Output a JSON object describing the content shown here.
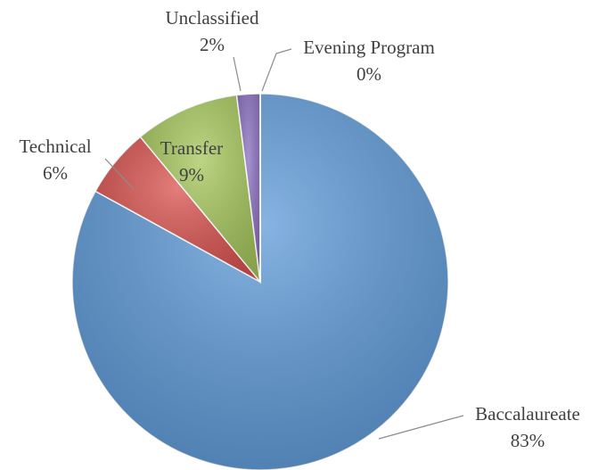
{
  "chart_data": {
    "type": "pie",
    "categories": [
      "Baccalaureate",
      "Technical",
      "Transfer",
      "Unclassified",
      "Evening Program"
    ],
    "values": [
      83,
      6,
      9,
      2,
      0
    ],
    "value_labels": [
      "83%",
      "6%",
      "9%",
      "2%",
      "0%"
    ],
    "colors": [
      "#5f9bd8",
      "#d9534f",
      "#a6c75c",
      "#8a6fc0",
      "#4bacc6"
    ]
  }
}
